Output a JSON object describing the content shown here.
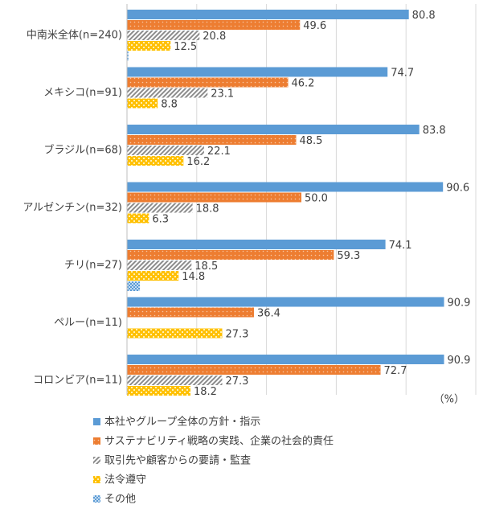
{
  "chart_data": {
    "type": "hbar",
    "categories": [
      "中南米全体(n=240)",
      "メキシコ(n=91)",
      "ブラジル(n=68)",
      "アルゼンチン(n=32)",
      "チリ(n=27)",
      "ペルー(n=11)",
      "コロンビア(n=11)"
    ],
    "series": [
      {
        "name": "本社やグループ全体の方針・指示",
        "color": "#5b9bd5",
        "pattern": "solid",
        "values": [
          80.8,
          74.7,
          83.8,
          90.6,
          74.1,
          90.9,
          90.9
        ],
        "value_labels": [
          "80.8",
          "74.7",
          "83.8",
          "90.6",
          "74.1",
          "90.9",
          "90.9"
        ]
      },
      {
        "name": "サステナビリティ戦略の実践、企業の社会的責任",
        "color": "#ed7d31",
        "pattern": "dots",
        "values": [
          49.6,
          46.2,
          48.5,
          50.0,
          59.3,
          36.4,
          72.7
        ],
        "value_labels": [
          "49.6",
          "46.2",
          "48.5",
          "50.0",
          "59.3",
          "36.4",
          "72.7"
        ]
      },
      {
        "name": "取引先や顧客からの要請・監査",
        "color": "#a5a5a5",
        "pattern": "hatch",
        "values": [
          20.8,
          23.1,
          22.1,
          18.8,
          18.5,
          null,
          27.3
        ],
        "value_labels": [
          "20.8",
          "23.1",
          "22.1",
          "18.8",
          "18.5",
          null,
          "27.3"
        ]
      },
      {
        "name": "法令遵守",
        "color": "#ffc000",
        "pattern": "grid",
        "values": [
          12.5,
          8.8,
          16.2,
          6.3,
          14.8,
          27.3,
          18.2
        ],
        "value_labels": [
          "12.5",
          "8.8",
          "16.2",
          "6.3",
          "14.8",
          "27.3",
          "18.2"
        ]
      },
      {
        "name": "その他",
        "color": "#5b9bd5",
        "pattern": "check",
        "values": [
          0.4,
          null,
          null,
          null,
          3.7,
          null,
          null
        ]
      }
    ],
    "unit_label": "（%）",
    "xlim": [
      0,
      100
    ],
    "xticks": [
      0,
      20,
      40,
      60,
      80,
      100
    ],
    "grid": true
  }
}
